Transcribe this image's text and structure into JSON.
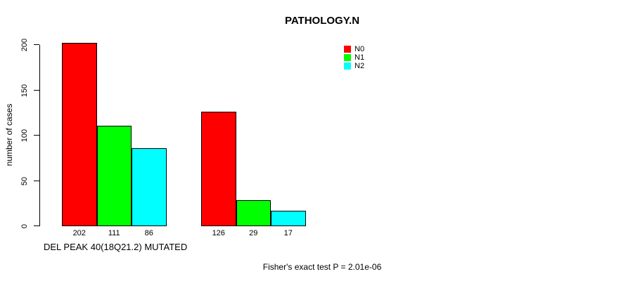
{
  "chart_data": {
    "type": "bar",
    "title": "PATHOLOGY.N",
    "ylabel": "number of cases",
    "xlabel": "DEL PEAK 40(18Q21.2) MUTATED",
    "footnote": "Fisher's exact test P = 2.01e-06",
    "n_groups": 2,
    "series": [
      {
        "name": "N0",
        "color": "#ff0000",
        "values": [
          202,
          126
        ]
      },
      {
        "name": "N1",
        "color": "#00ff00",
        "values": [
          111,
          29
        ]
      },
      {
        "name": "N2",
        "color": "#00ffff",
        "values": [
          86,
          17
        ]
      }
    ],
    "bar_value_labels": [
      [
        202,
        111,
        86
      ],
      [
        126,
        29,
        17
      ]
    ],
    "yticks": [
      0,
      50,
      100,
      150,
      200
    ],
    "ylim": [
      0,
      200
    ],
    "grid": false,
    "legend_position": "top-right",
    "colors": {
      "axis": "#000000",
      "background": "#ffffff"
    }
  }
}
